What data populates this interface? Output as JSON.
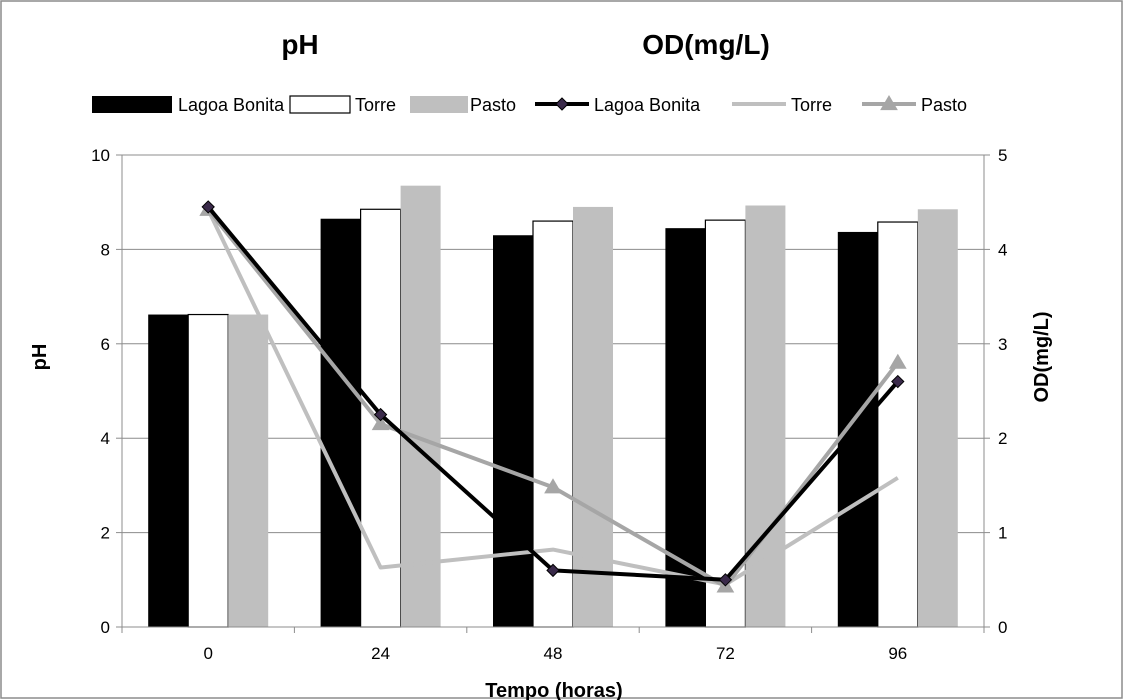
{
  "chart_data": {
    "type": "bar",
    "titles": [
      "pH",
      "OD(mg/L)"
    ],
    "xlabel": "Tempo (horas)",
    "ylabel_left": "pH",
    "ylabel_right": "OD(mg/L)",
    "categories": [
      "0",
      "24",
      "48",
      "72",
      "96"
    ],
    "ylim_left": [
      0,
      10
    ],
    "ylim_right": [
      0,
      5
    ],
    "yticks_left": [
      "0",
      "2",
      "4",
      "6",
      "8",
      "10"
    ],
    "yticks_right": [
      "0",
      "1",
      "2",
      "3",
      "4",
      "5"
    ],
    "grid": "horizontal",
    "legend_position": "top",
    "bar_series": [
      {
        "name": "Lagoa Bonita",
        "axis": "left",
        "color": "#000000",
        "values": [
          6.62,
          8.65,
          8.3,
          8.45,
          8.37
        ]
      },
      {
        "name": "Torre",
        "axis": "left",
        "color": "#ffffff",
        "values": [
          6.62,
          8.85,
          8.6,
          8.62,
          8.58
        ]
      },
      {
        "name": "Pasto",
        "axis": "left",
        "color": "#bfbfbf",
        "values": [
          6.62,
          9.35,
          8.9,
          8.93,
          8.85
        ]
      }
    ],
    "line_series": [
      {
        "name": "Lagoa Bonita",
        "axis": "right",
        "color": "#000000",
        "marker": "diamond",
        "values": [
          4.45,
          2.25,
          0.6,
          0.5,
          2.6
        ]
      },
      {
        "name": "Torre",
        "axis": "right",
        "color": "#bfbfbf",
        "marker": "none",
        "values": [
          4.42,
          0.63,
          0.82,
          0.45,
          1.58
        ]
      },
      {
        "name": "Pasto",
        "axis": "right",
        "color": "#a6a6a6",
        "marker": "triangle",
        "values": [
          4.42,
          2.15,
          1.48,
          0.43,
          2.8
        ]
      }
    ]
  }
}
